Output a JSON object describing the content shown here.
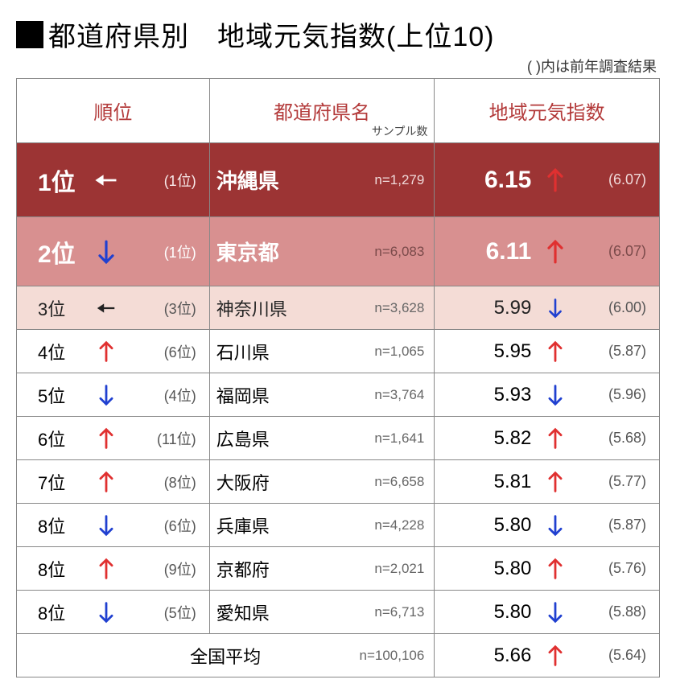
{
  "title": "都道府県別　地域元気指数(上位10)",
  "note": "(  )内は前年調査結果",
  "columns": {
    "rank": "順位",
    "pref": "都道府県名",
    "sample_label": "サンプル数",
    "score": "地域元気指数"
  },
  "colors": {
    "row1_bg": "#9c3434",
    "row1_fg": "#ffffff",
    "row2_bg": "#d89090",
    "row2_fg": "#ffffff",
    "row3_bg": "#f4dcd6",
    "row3_fg": "#222222",
    "header_fg": "#b33a3a",
    "arrow_up": "#e03030",
    "arrow_down": "#2040d0",
    "arrow_same_dark": "#222222",
    "arrow_same_light": "#ffffff",
    "border": "#888888"
  },
  "col_widths": [
    "30%",
    "35%",
    "35%"
  ],
  "arrows": {
    "up": {
      "rotate": -45,
      "type": "thin"
    },
    "down": {
      "rotate": 135,
      "type": "thin"
    },
    "same": {
      "rotate": 0,
      "type": "fat"
    }
  },
  "rows": [
    {
      "rank": "1位",
      "rank_arrow": "same",
      "rank_arrow_color": "#ffffff",
      "prev_rank": "(1位)",
      "pref": "沖縄県",
      "n": "n=1,279",
      "score": "6.15",
      "score_arrow": "up",
      "prev_score": "(6.07)",
      "style": "r1"
    },
    {
      "rank": "2位",
      "rank_arrow": "down",
      "rank_arrow_color": "#2040d0",
      "prev_rank": "(1位)",
      "pref": "東京都",
      "n": "n=6,083",
      "score": "6.11",
      "score_arrow": "up",
      "prev_score": "(6.07)",
      "style": "r2"
    },
    {
      "rank": "3位",
      "rank_arrow": "same",
      "rank_arrow_color": "#222222",
      "prev_rank": "(3位)",
      "pref": "神奈川県",
      "n": "n=3,628",
      "score": "5.99",
      "score_arrow": "down",
      "prev_score": "(6.00)",
      "style": "r3"
    },
    {
      "rank": "4位",
      "rank_arrow": "up",
      "rank_arrow_color": "#e03030",
      "prev_rank": "(6位)",
      "pref": "石川県",
      "n": "n=1,065",
      "score": "5.95",
      "score_arrow": "up",
      "prev_score": "(5.87)",
      "style": ""
    },
    {
      "rank": "5位",
      "rank_arrow": "down",
      "rank_arrow_color": "#2040d0",
      "prev_rank": "(4位)",
      "pref": "福岡県",
      "n": "n=3,764",
      "score": "5.93",
      "score_arrow": "down",
      "prev_score": "(5.96)",
      "style": ""
    },
    {
      "rank": "6位",
      "rank_arrow": "up",
      "rank_arrow_color": "#e03030",
      "prev_rank": "(11位)",
      "pref": "広島県",
      "n": "n=1,641",
      "score": "5.82",
      "score_arrow": "up",
      "prev_score": "(5.68)",
      "style": ""
    },
    {
      "rank": "7位",
      "rank_arrow": "up",
      "rank_arrow_color": "#e03030",
      "prev_rank": "(8位)",
      "pref": "大阪府",
      "n": "n=6,658",
      "score": "5.81",
      "score_arrow": "up",
      "prev_score": "(5.77)",
      "style": ""
    },
    {
      "rank": "8位",
      "rank_arrow": "down",
      "rank_arrow_color": "#2040d0",
      "prev_rank": "(6位)",
      "pref": "兵庫県",
      "n": "n=4,228",
      "score": "5.80",
      "score_arrow": "down",
      "prev_score": "(5.87)",
      "style": ""
    },
    {
      "rank": "8位",
      "rank_arrow": "up",
      "rank_arrow_color": "#e03030",
      "prev_rank": "(9位)",
      "pref": "京都府",
      "n": "n=2,021",
      "score": "5.80",
      "score_arrow": "up",
      "prev_score": "(5.76)",
      "style": ""
    },
    {
      "rank": "8位",
      "rank_arrow": "down",
      "rank_arrow_color": "#2040d0",
      "prev_rank": "(5位)",
      "pref": "愛知県",
      "n": "n=6,713",
      "score": "5.80",
      "score_arrow": "down",
      "prev_score": "(5.88)",
      "style": ""
    }
  ],
  "average": {
    "label": "全国平均",
    "n": "n=100,106",
    "score": "5.66",
    "score_arrow": "up",
    "prev_score": "(5.64)"
  }
}
